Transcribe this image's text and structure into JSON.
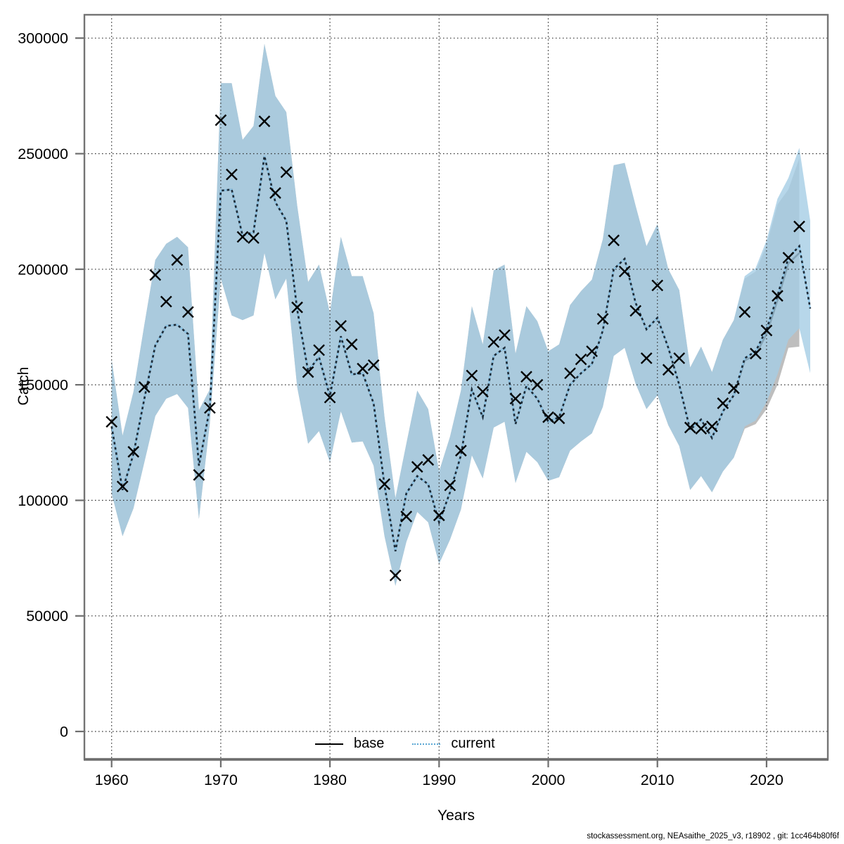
{
  "axes": {
    "x_label": "Years",
    "y_label": "Catch",
    "x_ticks": [
      1960,
      1970,
      1980,
      1990,
      2000,
      2010,
      2020
    ],
    "y_ticks": [
      0,
      50000,
      100000,
      150000,
      200000,
      250000,
      300000
    ]
  },
  "legend": {
    "items": [
      {
        "label": "base",
        "style": "solid",
        "color": "#000000"
      },
      {
        "label": "current",
        "style": "dotted",
        "color": "#5aa7d4"
      }
    ],
    "position": "bottom-center"
  },
  "footer": {
    "text": "stockassessment.org, NEAsaithe_2025_v3, r18902 , git: 1cc464b80f6f"
  },
  "colors": {
    "base_band": "#bebebe",
    "base_line": "#000000",
    "current_band": "rgba(165,205,229,0.8)",
    "current_underlay": "#8ec6e8",
    "current_dash": "#1c2b38",
    "marker": "#000000",
    "grid": "#2b2b2b",
    "border": "#747474",
    "tick": "#6e6e6e"
  },
  "chart_data": {
    "type": "line",
    "title": "",
    "xlabel": "Years",
    "ylabel": "Catch",
    "xlim": [
      1957.5,
      2025.6
    ],
    "ylim": [
      -11900,
      310100
    ],
    "grid": true,
    "legend_position": "bottom-center",
    "x": [
      1960,
      1961,
      1962,
      1963,
      1964,
      1965,
      1966,
      1967,
      1968,
      1969,
      1970,
      1971,
      1972,
      1973,
      1974,
      1975,
      1976,
      1977,
      1978,
      1979,
      1980,
      1981,
      1982,
      1983,
      1984,
      1985,
      1986,
      1987,
      1988,
      1989,
      1990,
      1991,
      1992,
      1993,
      1994,
      1995,
      1996,
      1997,
      1998,
      1999,
      2000,
      2001,
      2002,
      2003,
      2004,
      2005,
      2006,
      2007,
      2008,
      2009,
      2010,
      2011,
      2012,
      2013,
      2014,
      2015,
      2016,
      2017,
      2018,
      2019,
      2020,
      2021,
      2022,
      2023,
      2024
    ],
    "series": [
      {
        "name": "observations",
        "style": "x-markers",
        "values": [
          134000,
          106000,
          121000,
          149000,
          197500,
          186000,
          204000,
          181500,
          111000,
          140000,
          264500,
          241000,
          214000,
          213500,
          264000,
          233000,
          242000,
          183500,
          155500,
          165000,
          144500,
          175500,
          167500,
          157000,
          158500,
          107000,
          67500,
          93000,
          114500,
          117500,
          93500,
          106500,
          121500,
          154000,
          147000,
          168500,
          171500,
          144000,
          153500,
          150000,
          136000,
          135500,
          155000,
          161000,
          164500,
          178500,
          212500,
          199000,
          182000,
          161500,
          193000,
          156500,
          161500,
          131500,
          131000,
          132000,
          142000,
          148500,
          181500,
          163500,
          173500,
          188500,
          205000,
          218500,
          null
        ]
      },
      {
        "name": "current",
        "style": "dotted-line",
        "values": [
          132000,
          104500,
          120000,
          144000,
          167000,
          175500,
          176000,
          172000,
          115000,
          140000,
          234000,
          234500,
          214500,
          216000,
          249000,
          229000,
          221000,
          182500,
          156000,
          162000,
          145000,
          171000,
          154500,
          155000,
          142000,
          106500,
          78000,
          103000,
          110500,
          107000,
          90500,
          103500,
          119500,
          148000,
          136000,
          162500,
          166000,
          133000,
          149500,
          144000,
          134000,
          136000,
          150000,
          155000,
          159000,
          173500,
          200000,
          204500,
          185500,
          174000,
          179000,
          166000,
          150000,
          130500,
          135000,
          127000,
          138500,
          145500,
          161500,
          164500,
          174000,
          188500,
          205000,
          210000,
          183000
        ]
      },
      {
        "name": "current_ci_lower",
        "style": "band-edge",
        "values": [
          103000,
          84500,
          96500,
          116500,
          136500,
          144000,
          146000,
          140000,
          92000,
          133500,
          196000,
          180000,
          178000,
          180000,
          207000,
          187000,
          196000,
          149000,
          124500,
          130000,
          116500,
          138500,
          125000,
          125500,
          115000,
          84500,
          63000,
          82000,
          95000,
          90500,
          72500,
          83000,
          96000,
          119500,
          109500,
          131500,
          134000,
          107500,
          121000,
          116500,
          108500,
          110000,
          121500,
          125500,
          129000,
          140500,
          162500,
          166000,
          150500,
          139500,
          145500,
          132500,
          123500,
          104500,
          110500,
          103500,
          112500,
          118500,
          132000,
          134500,
          142500,
          154500,
          169500,
          174500,
          155000
        ]
      },
      {
        "name": "current_ci_upper",
        "style": "band-edge",
        "values": [
          161000,
          128000,
          147000,
          176000,
          204000,
          211000,
          214000,
          209500,
          139000,
          148000,
          280500,
          280500,
          256000,
          262000,
          297500,
          275000,
          268000,
          227500,
          194500,
          202000,
          181000,
          214000,
          197000,
          197000,
          181000,
          136000,
          101000,
          124500,
          147500,
          139500,
          112500,
          127500,
          147500,
          184000,
          167500,
          199500,
          202000,
          163500,
          184000,
          177500,
          164500,
          167500,
          184500,
          190500,
          195500,
          213000,
          245000,
          246000,
          227500,
          210000,
          219500,
          200000,
          191000,
          157500,
          166500,
          155500,
          169500,
          178000,
          197000,
          200500,
          212500,
          230500,
          239500,
          252500,
          221000
        ]
      },
      {
        "name": "base",
        "style": "solid-line",
        "x_end": 2023,
        "values": [
          132000,
          104500,
          120000,
          144000,
          167000,
          175500,
          176000,
          172000,
          115000,
          140000,
          234000,
          234500,
          214500,
          216000,
          249000,
          229000,
          221000,
          182500,
          156000,
          162000,
          145000,
          171000,
          154500,
          155000,
          142000,
          106500,
          78000,
          103000,
          110500,
          107000,
          90500,
          103500,
          119500,
          148000,
          136000,
          162500,
          166000,
          133000,
          149500,
          144000,
          134000,
          136000,
          150000,
          155000,
          159000,
          173500,
          200000,
          204500,
          185500,
          174000,
          179000,
          166000,
          150000,
          130500,
          135000,
          127000,
          138500,
          145500,
          160500,
          163000,
          172000,
          186500,
          202500,
          207000
        ]
      },
      {
        "name": "base_ci_lower",
        "style": "band-edge",
        "x_end": 2023,
        "values": [
          103000,
          84500,
          96500,
          116500,
          136500,
          144000,
          146000,
          140000,
          92000,
          133500,
          196000,
          180000,
          178000,
          180000,
          207000,
          187000,
          196000,
          149000,
          124500,
          130000,
          116500,
          138500,
          125000,
          125500,
          115000,
          84500,
          63000,
          82000,
          95000,
          90500,
          72500,
          83000,
          96000,
          119500,
          109500,
          131500,
          134000,
          107500,
          121000,
          116500,
          108500,
          110000,
          121500,
          125500,
          129000,
          140500,
          162500,
          166000,
          150500,
          139500,
          145500,
          132500,
          123500,
          104500,
          110500,
          103500,
          112500,
          118500,
          131000,
          133000,
          139500,
          150000,
          166000,
          166500
        ]
      },
      {
        "name": "base_ci_upper",
        "style": "band-edge",
        "x_end": 2023,
        "values": [
          161000,
          128000,
          147000,
          176000,
          204000,
          211000,
          214000,
          209500,
          139000,
          148000,
          280500,
          280500,
          256000,
          262000,
          297500,
          275000,
          268000,
          227500,
          194500,
          202000,
          181000,
          214000,
          197000,
          197000,
          181000,
          136000,
          101000,
          124500,
          147500,
          139500,
          112500,
          127500,
          147500,
          184000,
          167500,
          199500,
          202000,
          163500,
          184000,
          177500,
          164500,
          167500,
          184500,
          190500,
          195500,
          213000,
          245000,
          246000,
          227500,
          210000,
          219500,
          200000,
          191000,
          157500,
          166500,
          155500,
          169500,
          178000,
          196000,
          199000,
          210500,
          228000,
          234500,
          248000
        ]
      }
    ]
  }
}
